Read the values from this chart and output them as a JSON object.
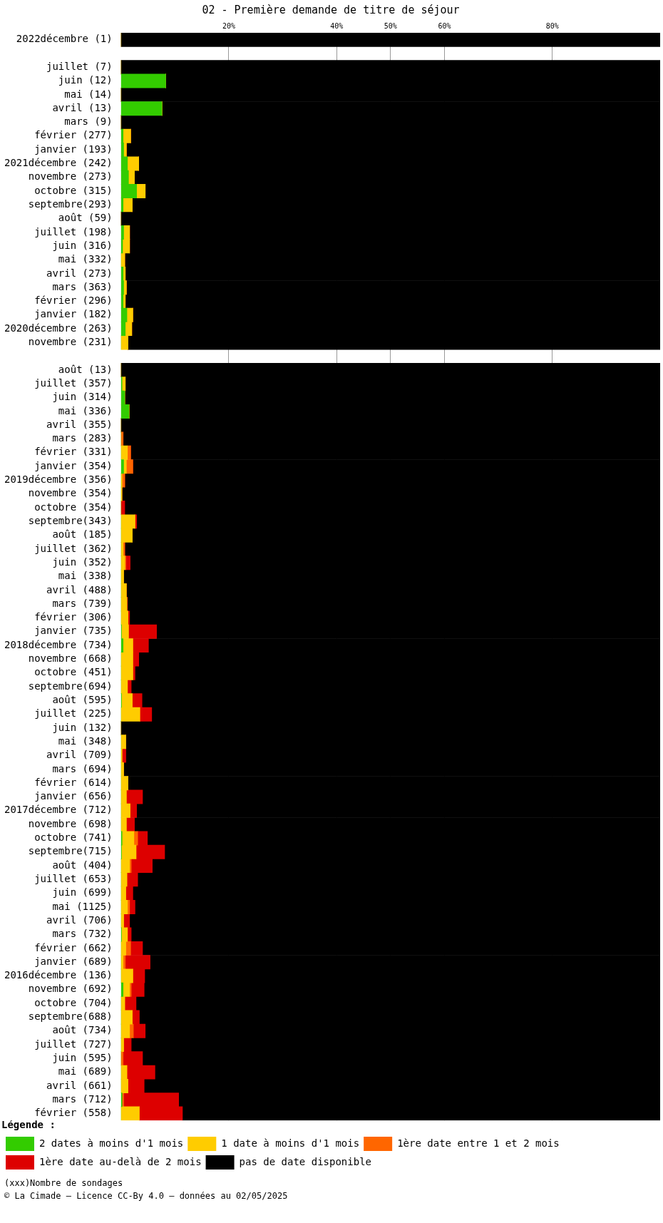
{
  "chart_data": {
    "type": "bar",
    "orientation": "horizontal",
    "stacked": true,
    "title": "02 - Première demande de titre de séjour",
    "legend_title": "Légende :",
    "annotations": [
      "(xxx)Nombre de sondages",
      "© La Cimade — Licence CC-By 4.0 — données au 02/05/2025"
    ],
    "xlim": [
      0,
      100
    ],
    "xticks": [
      {
        "value": 20,
        "label": "20%"
      },
      {
        "value": 40,
        "label": "40%"
      },
      {
        "value": 50,
        "label": "50%"
      },
      {
        "value": 60,
        "label": "60%"
      },
      {
        "value": 80,
        "label": "80%"
      }
    ],
    "grid": "x",
    "legend": "bottom",
    "categories": [
      "2022décembre (1)",
      null,
      "juillet (7)",
      "juin (12)",
      "mai (14)",
      "avril (13)",
      "mars (9)",
      "février (277)",
      "janvier (193)",
      "2021décembre (242)",
      "novembre (273)",
      "octobre (315)",
      "septembre(293)",
      "août (59)",
      "juillet (198)",
      "juin (316)",
      "mai (332)",
      "avril (273)",
      "mars (363)",
      "février (296)",
      "janvier (182)",
      "2020décembre (263)",
      "novembre (231)",
      null,
      "août (13)",
      "juillet (357)",
      "juin (314)",
      "mai (336)",
      "avril (355)",
      "mars (283)",
      "février (331)",
      "janvier (354)",
      "2019décembre (356)",
      "novembre (354)",
      "octobre (354)",
      "septembre(343)",
      "août (185)",
      "juillet (362)",
      "juin (352)",
      "mai (338)",
      "avril (488)",
      "mars (739)",
      "février (306)",
      "janvier (735)",
      "2018décembre (734)",
      "novembre (668)",
      "octobre (451)",
      "septembre(694)",
      "août (595)",
      "juillet (225)",
      "juin (132)",
      "mai (348)",
      "avril (709)",
      "mars (694)",
      "février (614)",
      "janvier (656)",
      "2017décembre (712)",
      "novembre (698)",
      "octobre (741)",
      "septembre(715)",
      "août (404)",
      "juillet (653)",
      "juin (699)",
      "mai (1125)",
      "avril (706)",
      "mars (732)",
      "février (662)",
      "janvier (689)",
      "2016décembre (136)",
      "novembre (692)",
      "octobre (704)",
      "septembre(688)",
      "août (734)",
      "juillet (727)",
      "juin (595)",
      "mai (689)",
      "avril (661)",
      "mars (712)",
      "février (558)"
    ],
    "series": [
      {
        "name": "2 dates à moins d'1 mois",
        "color": "#33cc00",
        "values": [
          0,
          null,
          0,
          8.3,
          0,
          7.6,
          0,
          0.4,
          0.5,
          1.2,
          1.4,
          2.9,
          0.4,
          0,
          0.5,
          0.3,
          0,
          0.4,
          0.5,
          0.4,
          1.1,
          0.8,
          0,
          null,
          0,
          0.2,
          0.7,
          1.5,
          0,
          0,
          0,
          0.5,
          0,
          0,
          0,
          0,
          0,
          0,
          0,
          0,
          0,
          0,
          0,
          0.1,
          0.4,
          0,
          0,
          0,
          0.1,
          0,
          0,
          0,
          0,
          0,
          0,
          0,
          0,
          0,
          0.2,
          0.1,
          0,
          0,
          0,
          0,
          0,
          0.1,
          0,
          0,
          0,
          0.4,
          0,
          0,
          0,
          0,
          0,
          0,
          0,
          0.2,
          0
        ]
      },
      {
        "name": "1 date à moins d'1 mois",
        "color": "#ffcc00",
        "values": [
          0,
          null,
          0,
          0,
          0,
          0,
          0,
          1.4,
          0.5,
          2.1,
          1.1,
          1.6,
          1.7,
          0,
          1.1,
          1.3,
          0.7,
          0.4,
          0.5,
          0.4,
          1.1,
          1.2,
          1.3,
          null,
          0,
          0.6,
          0,
          0,
          0,
          0,
          1.2,
          0.5,
          0.2,
          0.2,
          0,
          2.6,
          2.1,
          0.4,
          0.7,
          0.5,
          1.0,
          1.1,
          1.3,
          1.3,
          1.8,
          2.2,
          2.2,
          1.2,
          2.0,
          3.5,
          0,
          0.9,
          0.2,
          0.5,
          1.3,
          1.0,
          1.7,
          1.0,
          2.2,
          2.7,
          1.6,
          1.1,
          0.9,
          1.2,
          0.5,
          1.1,
          0.9,
          0.4,
          2.2,
          1.2,
          0.7,
          2.1,
          1.6,
          0.5,
          0,
          1.1,
          1.3,
          null,
          3.4
        ]
      },
      {
        "name": "1ère date entre 1 et 2 mois",
        "color": "#ff6600",
        "values": [
          0,
          null,
          0,
          0,
          0,
          0,
          0,
          0,
          0,
          0,
          0,
          0,
          0,
          0,
          0,
          0,
          0,
          0,
          0,
          0,
          0,
          0,
          0,
          null,
          0,
          0,
          0,
          0,
          0,
          0.4,
          0.6,
          1.2,
          0.5,
          null,
          0,
          0,
          0,
          0.3,
          0.2,
          0,
          0,
          0,
          0,
          0,
          0,
          0,
          0,
          0,
          0,
          0,
          0,
          0,
          0,
          0,
          0,
          0,
          0,
          0,
          0.7,
          0,
          0.3,
          0,
          0,
          0.4,
          0,
          0,
          0.9,
          0.4,
          0,
          0.3,
          0,
          0,
          0.7,
          0,
          0.4,
          0,
          0,
          0.3,
          0
        ]
      },
      {
        "name": "1ère date au-delà de 2 mois",
        "color": "#dd0000",
        "values": [
          0,
          null,
          0,
          0,
          0,
          0,
          0,
          0,
          0,
          0,
          0,
          0,
          0,
          0,
          0,
          0,
          0,
          0,
          0,
          0,
          0,
          0,
          0,
          null,
          0,
          0,
          0,
          0,
          0,
          0,
          0,
          0,
          0,
          0,
          0.7,
          0.3,
          0,
          0,
          0.8,
          null,
          0,
          0.1,
          0.3,
          5.2,
          2.9,
          1.1,
          0.4,
          0.7,
          1.8,
          2.2,
          0,
          0,
          0.7,
          0,
          0,
          3.0,
          1.2,
          1.5,
          1.8,
          5.3,
          3.9,
          2.0,
          1.3,
          1.0,
          1.1,
          0.7,
          2.2,
          4.6,
          2.2,
          2.4,
          2.1,
          1.3,
          2.2,
          1.4,
          3.6,
          5.2,
          3.0,
          10.2,
          8.0
        ]
      },
      {
        "name": "pas de date disponible",
        "color": "#000000",
        "values": [
          100,
          null,
          100,
          91.7,
          100,
          92.4,
          100,
          98.2,
          99,
          96.7,
          97.5,
          95.5,
          97.9,
          100,
          98.4,
          98.4,
          99.3,
          99.2,
          99,
          99.2,
          97.8,
          98,
          98.7,
          null,
          100,
          99.2,
          99.3,
          98.5,
          100,
          99.6,
          98.2,
          97.8,
          99.3,
          99.8,
          99.3,
          97.1,
          97.9,
          99.3,
          98.3,
          99.5,
          99,
          98.8,
          98.4,
          93.4,
          94.9,
          96.7,
          97.4,
          98.1,
          96.1,
          94.3,
          100,
          99.1,
          99.1,
          99.5,
          98.7,
          96,
          97.1,
          97.5,
          95.1,
          91.9,
          94.2,
          96.9,
          97.8,
          97.4,
          98.4,
          98.1,
          96,
          94.6,
          95.6,
          95.7,
          97.2,
          96.6,
          95.5,
          98.1,
          96,
          93.7,
          95.7,
          89.3,
          88.6
        ]
      }
    ]
  }
}
